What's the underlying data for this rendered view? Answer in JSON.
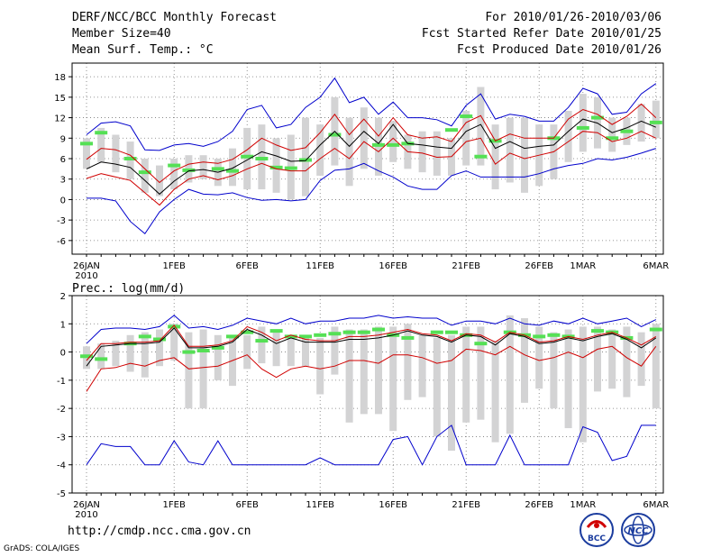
{
  "header": {
    "line1": "DERF/NCC/BCC Monthly Forecast",
    "line2": "Member Size=40",
    "line3": "Mean Surf. Temp.: °C",
    "right1": "For 2010/01/26-2010/03/06",
    "right2": "Fcst Started Refer Date 2010/01/25",
    "right3": "Fcst Produced Date 2010/01/26"
  },
  "footer": {
    "url": "http://cmdp.ncc.cma.gov.cn",
    "grads": "GrADS: COLA/IGES",
    "logo1_label": "BCC",
    "logo2_label": "NCC"
  },
  "colors": {
    "mean": "#000000",
    "spread": "#d00000",
    "range": "#0000cc",
    "box": "#d3d3d4",
    "obs": "#55e055"
  },
  "chart_data": [
    {
      "type": "line",
      "title": "Mean Surf. Temp.: °C",
      "ylim": [
        -8,
        20
      ],
      "yticks": [
        -6,
        -3,
        0,
        3,
        6,
        9,
        12,
        15,
        18
      ],
      "x_labels": [
        {
          "day": 0,
          "label": "26JAN",
          "sub": "2010"
        },
        {
          "day": 6,
          "label": "1FEB"
        },
        {
          "day": 11,
          "label": "6FEB"
        },
        {
          "day": 16,
          "label": "11FEB"
        },
        {
          "day": 21,
          "label": "16FEB"
        },
        {
          "day": 26,
          "label": "21FEB"
        },
        {
          "day": 31,
          "label": "26FEB"
        },
        {
          "day": 34,
          "label": "1MAR"
        },
        {
          "day": 39,
          "label": "6MAR"
        }
      ],
      "days": 40,
      "mean": [
        4.5,
        5.5,
        5.2,
        4.7,
        2.8,
        0.8,
        2.7,
        4.2,
        4.4,
        4.0,
        4.6,
        5.8,
        7.0,
        6.4,
        5.6,
        5.7,
        8.0,
        10.0,
        7.8,
        10.0,
        8.2,
        11.0,
        8.2,
        8.0,
        7.7,
        7.5,
        10.0,
        11.0,
        7.5,
        8.5,
        7.5,
        7.8,
        8.0,
        10.0,
        11.8,
        11.2,
        9.8,
        10.5,
        11.5,
        10.6
      ],
      "upper": [
        5.9,
        7.5,
        7.3,
        6.5,
        4.5,
        2.5,
        4.2,
        5.2,
        5.5,
        5.3,
        5.9,
        7.3,
        9.0,
        8.0,
        7.2,
        7.6,
        9.8,
        12.5,
        9.5,
        11.8,
        9.3,
        12.0,
        9.5,
        9.0,
        9.2,
        8.5,
        11.3,
        12.3,
        8.6,
        9.6,
        9.0,
        9.0,
        9.0,
        11.8,
        13.2,
        12.5,
        11.0,
        12.2,
        14.0,
        12.0
      ],
      "lower": [
        3.1,
        3.8,
        3.3,
        2.8,
        1.0,
        -0.8,
        1.5,
        3.0,
        3.5,
        2.9,
        3.5,
        4.5,
        5.3,
        4.5,
        4.2,
        4.2,
        6.0,
        7.5,
        6.0,
        8.5,
        7.0,
        9.0,
        7.0,
        6.8,
        6.2,
        6.3,
        8.5,
        9.0,
        5.2,
        6.8,
        6.0,
        6.5,
        7.0,
        8.5,
        10.0,
        9.8,
        8.5,
        9.0,
        10.0,
        9.0
      ],
      "max": [
        9.5,
        11.2,
        11.4,
        10.8,
        7.3,
        7.2,
        8.0,
        8.2,
        7.8,
        8.5,
        10.0,
        13.2,
        13.8,
        10.5,
        11.0,
        13.5,
        15.0,
        17.8,
        14.2,
        15.0,
        12.5,
        14.3,
        12.0,
        12.0,
        11.7,
        10.8,
        13.8,
        15.5,
        11.8,
        12.5,
        12.2,
        11.5,
        11.5,
        13.5,
        16.3,
        15.5,
        12.5,
        12.8,
        15.5,
        17.0
      ],
      "min": [
        0.2,
        0.2,
        -0.2,
        -3.2,
        -5.0,
        -1.8,
        0.0,
        1.5,
        0.8,
        0.7,
        1.0,
        0.3,
        -0.1,
        0.0,
        -0.2,
        0.0,
        2.8,
        4.3,
        4.5,
        5.3,
        4.2,
        3.3,
        2.0,
        1.5,
        1.5,
        3.5,
        4.2,
        3.3,
        3.3,
        3.3,
        3.3,
        3.8,
        4.5,
        5.0,
        5.3,
        6.0,
        5.8,
        6.2,
        6.8,
        7.5
      ],
      "box_hi": [
        9.0,
        10.5,
        9.5,
        8.5,
        6.0,
        5.0,
        6.0,
        6.5,
        6.5,
        6.0,
        7.5,
        10.5,
        11.0,
        9.0,
        9.5,
        12.0,
        11.0,
        15.0,
        12.0,
        13.5,
        12.0,
        11.5,
        9.5,
        10.0,
        10.0,
        9.0,
        13.0,
        16.5,
        11.0,
        12.0,
        12.0,
        11.0,
        11.0,
        13.0,
        15.5,
        15.0,
        12.0,
        12.0,
        14.0,
        14.5
      ],
      "box_lo": [
        4.5,
        5.5,
        4.0,
        3.0,
        1.0,
        0.5,
        1.5,
        2.5,
        3.0,
        2.0,
        2.0,
        1.5,
        1.5,
        1.0,
        0.0,
        0.5,
        3.5,
        5.0,
        2.0,
        4.5,
        3.5,
        5.5,
        4.5,
        4.0,
        3.5,
        3.5,
        5.0,
        5.0,
        1.5,
        2.5,
        1.0,
        2.0,
        3.0,
        5.5,
        7.0,
        7.5,
        7.0,
        8.0,
        8.5,
        9.0
      ],
      "obs": [
        8.2,
        9.8,
        null,
        6.0,
        4.0,
        null,
        5.0,
        4.3,
        null,
        4.5,
        4.2,
        6.3,
        6.0,
        4.7,
        4.6,
        5.8,
        null,
        9.5,
        null,
        null,
        8.0,
        8.0,
        8.2,
        null,
        null,
        10.2,
        12.2,
        6.3,
        8.6,
        null,
        null,
        null,
        9.0,
        null,
        10.5,
        12.0,
        9.0,
        10.0,
        null,
        11.3
      ]
    },
    {
      "type": "line",
      "title": "Prec.: log(mm/d)",
      "ylim": [
        -5,
        2
      ],
      "yticks": [
        -5,
        -4,
        -3,
        -2,
        -1,
        0,
        1,
        2
      ],
      "x_labels": [
        {
          "day": 0,
          "label": "26JAN",
          "sub": "2010"
        },
        {
          "day": 6,
          "label": "1FEB"
        },
        {
          "day": 11,
          "label": "6FEB"
        },
        {
          "day": 16,
          "label": "11FEB"
        },
        {
          "day": 21,
          "label": "16FEB"
        },
        {
          "day": 26,
          "label": "21FEB"
        },
        {
          "day": 31,
          "label": "26FEB"
        },
        {
          "day": 34,
          "label": "1MAR"
        },
        {
          "day": 39,
          "label": "6MAR"
        }
      ],
      "days": 40,
      "mean": [
        -0.5,
        0.2,
        0.25,
        0.3,
        0.3,
        0.35,
        0.85,
        0.15,
        0.15,
        0.2,
        0.35,
        0.8,
        0.6,
        0.3,
        0.5,
        0.35,
        0.35,
        0.35,
        0.45,
        0.45,
        0.5,
        0.6,
        0.75,
        0.6,
        0.55,
        0.35,
        0.6,
        0.55,
        0.25,
        0.65,
        0.55,
        0.3,
        0.35,
        0.5,
        0.4,
        0.55,
        0.65,
        0.45,
        0.15,
        0.5
      ],
      "upper": [
        -0.3,
        0.3,
        0.3,
        0.35,
        0.35,
        0.4,
        0.95,
        0.2,
        0.2,
        0.25,
        0.4,
        0.9,
        0.7,
        0.4,
        0.6,
        0.45,
        0.4,
        0.4,
        0.55,
        0.55,
        0.6,
        0.7,
        0.8,
        0.65,
        0.6,
        0.4,
        0.65,
        0.6,
        0.35,
        0.7,
        0.6,
        0.35,
        0.4,
        0.55,
        0.45,
        0.6,
        0.7,
        0.5,
        0.25,
        0.55
      ],
      "lower": [
        -1.4,
        -0.6,
        -0.55,
        -0.4,
        -0.5,
        -0.3,
        -0.2,
        -0.6,
        -0.55,
        -0.5,
        -0.3,
        -0.1,
        -0.6,
        -0.9,
        -0.6,
        -0.5,
        -0.6,
        -0.5,
        -0.3,
        -0.3,
        -0.4,
        -0.1,
        -0.1,
        -0.2,
        -0.4,
        -0.3,
        0.1,
        0.05,
        -0.1,
        0.2,
        -0.1,
        -0.3,
        -0.2,
        0.0,
        -0.2,
        0.1,
        0.2,
        -0.2,
        -0.5,
        0.2
      ],
      "max": [
        0.3,
        0.8,
        0.85,
        0.85,
        0.8,
        0.9,
        1.3,
        0.85,
        0.9,
        0.8,
        0.95,
        1.2,
        1.1,
        1.0,
        1.2,
        1.0,
        1.1,
        1.1,
        1.2,
        1.2,
        1.3,
        1.2,
        1.25,
        1.2,
        1.2,
        0.95,
        1.1,
        1.1,
        1.0,
        1.2,
        1.0,
        0.95,
        1.1,
        1.0,
        1.2,
        1.0,
        1.1,
        1.2,
        0.9,
        1.15
      ],
      "min": [
        -4.0,
        -3.25,
        -3.35,
        -3.35,
        -4.0,
        -4.0,
        -3.15,
        -3.9,
        -4.0,
        -3.15,
        -4.0,
        -4.0,
        -4.0,
        -4.0,
        -4.0,
        -4.0,
        -3.75,
        -4.0,
        -4.0,
        -4.0,
        -4.0,
        -3.1,
        -3.0,
        -4.0,
        -3.0,
        -2.6,
        -4.0,
        -4.0,
        -4.0,
        -2.95,
        -4.0,
        -4.0,
        -4.0,
        -4.0,
        -2.65,
        -2.85,
        -3.85,
        -3.7,
        -2.6,
        -2.6
      ],
      "box_hi": [
        0.2,
        0.3,
        0.4,
        0.6,
        0.7,
        0.8,
        1.0,
        0.7,
        0.8,
        0.6,
        0.6,
        0.6,
        0.9,
        0.8,
        0.6,
        0.6,
        0.5,
        0.9,
        0.8,
        0.8,
        0.9,
        0.9,
        1.0,
        0.6,
        0.5,
        0.6,
        0.9,
        0.9,
        0.4,
        1.3,
        1.2,
        0.9,
        0.7,
        0.8,
        0.9,
        0.9,
        0.8,
        0.9,
        0.7,
        1.0
      ],
      "box_lo": [
        -0.6,
        -0.6,
        -0.5,
        -0.7,
        -0.9,
        -0.5,
        -0.3,
        -2.0,
        -2.0,
        -1.0,
        -1.2,
        -0.6,
        -0.4,
        -0.5,
        -0.5,
        -0.5,
        -1.5,
        -0.8,
        -2.5,
        -2.2,
        -2.2,
        -2.8,
        -1.7,
        -1.6,
        -3.0,
        -3.5,
        -2.5,
        -2.4,
        -3.2,
        -2.9,
        -1.8,
        -1.3,
        -2.0,
        -2.7,
        -3.2,
        -1.4,
        -1.3,
        -1.6,
        -1.2,
        -2.0
      ],
      "obs": [
        -0.15,
        -0.25,
        null,
        0.3,
        0.55,
        0.45,
        0.9,
        0.0,
        0.05,
        0.15,
        0.55,
        0.7,
        0.4,
        0.75,
        0.55,
        0.55,
        0.6,
        0.65,
        0.7,
        0.7,
        0.8,
        0.6,
        0.5,
        null,
        0.7,
        0.7,
        0.6,
        0.3,
        null,
        0.7,
        0.6,
        0.55,
        0.6,
        0.55,
        null,
        0.75,
        0.7,
        0.5,
        null,
        0.8
      ]
    }
  ]
}
